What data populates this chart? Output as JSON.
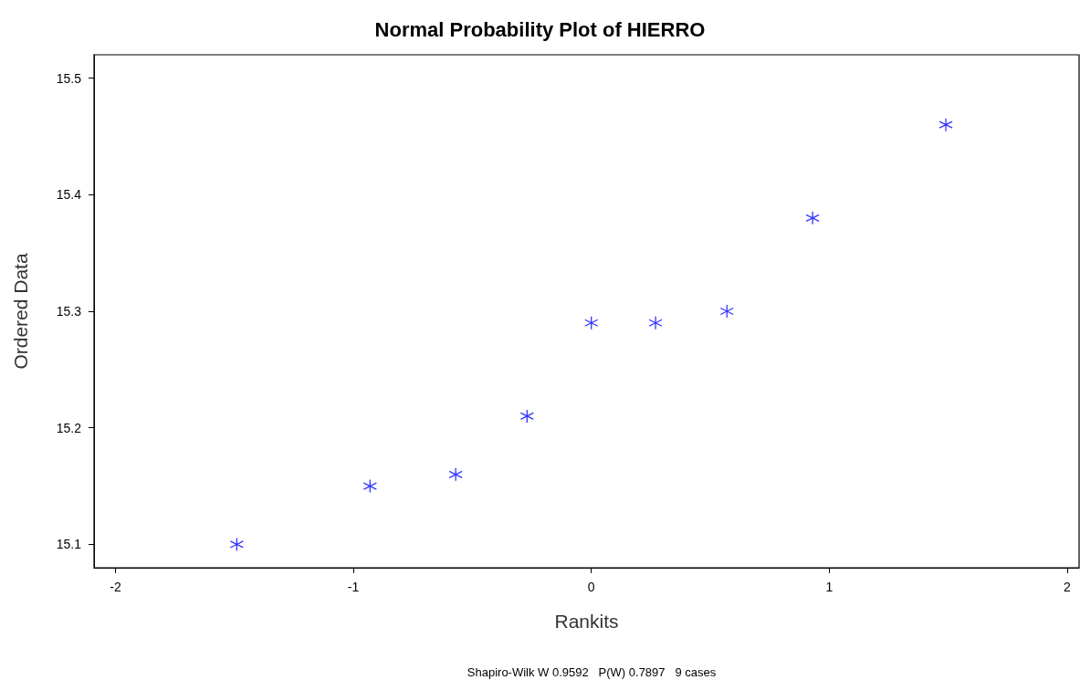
{
  "chart_data": {
    "type": "scatter",
    "title": "Normal Probability Plot of HIERRO",
    "xlabel": "Rankits",
    "ylabel": "Ordered Data",
    "annotations": [
      "Shapiro-Wilk W 0.9592   P(W) 0.7897   9 cases"
    ],
    "x": [
      -1.49,
      -0.93,
      -0.57,
      -0.27,
      0,
      0.27,
      0.57,
      0.93,
      1.49
    ],
    "values": [
      15.1,
      15.15,
      15.16,
      15.21,
      15.29,
      15.29,
      15.3,
      15.38,
      15.46
    ],
    "color": "#0000ff",
    "marker": "cross",
    "grid": false,
    "xlim": [
      -2.09,
      2.05
    ],
    "xticks": [
      -2,
      -1,
      0,
      1,
      2
    ],
    "ylim": [
      15.08,
      15.52
    ],
    "yticks": [
      15.1,
      15.2,
      15.3,
      15.4,
      15.5
    ]
  }
}
